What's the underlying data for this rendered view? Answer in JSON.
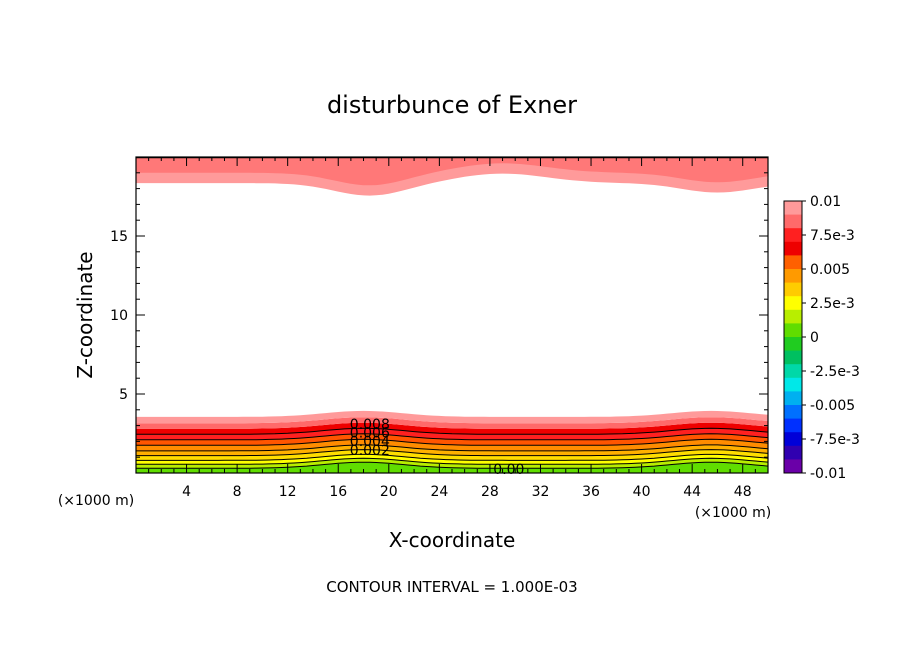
{
  "chart_data": {
    "type": "contour",
    "title": "disturbunce of Exner",
    "xlabel": "X-coordinate",
    "ylabel": "Z-coordinate",
    "x_unit": "(×1000 m)",
    "y_unit": "(×1000 m)",
    "xlim": [
      0,
      50
    ],
    "ylim": [
      0,
      20
    ],
    "x_ticks": [
      "4",
      "8",
      "12",
      "16",
      "20",
      "24",
      "28",
      "32",
      "36",
      "40",
      "44",
      "48"
    ],
    "y_ticks": [
      "5",
      "10",
      "15"
    ],
    "footer": "CONTOUR INTERVAL = 1.000E-03",
    "contour_labels": [
      "0.008",
      "0.006",
      "0.004",
      "0.002",
      "0.00"
    ],
    "colorbar": {
      "range": [
        -0.01,
        0.01
      ],
      "ticks": [
        "0.01",
        "7.5e-3",
        "0.005",
        "2.5e-3",
        "0",
        "-2.5e-3",
        "-0.005",
        "-7.5e-3",
        "-0.01"
      ],
      "colors": [
        "#ff9a9a",
        "#ff6a6a",
        "#ff2020",
        "#ee0000",
        "#ff6000",
        "#ff9a00",
        "#ffcc00",
        "#ffff00",
        "#b8ee00",
        "#60dd00",
        "#20cc20",
        "#00c060",
        "#00d8a8",
        "#00e8e8",
        "#00b0f0",
        "#0070ff",
        "#0030ff",
        "#0000d8",
        "#3000b0",
        "#6a00a8"
      ]
    }
  }
}
